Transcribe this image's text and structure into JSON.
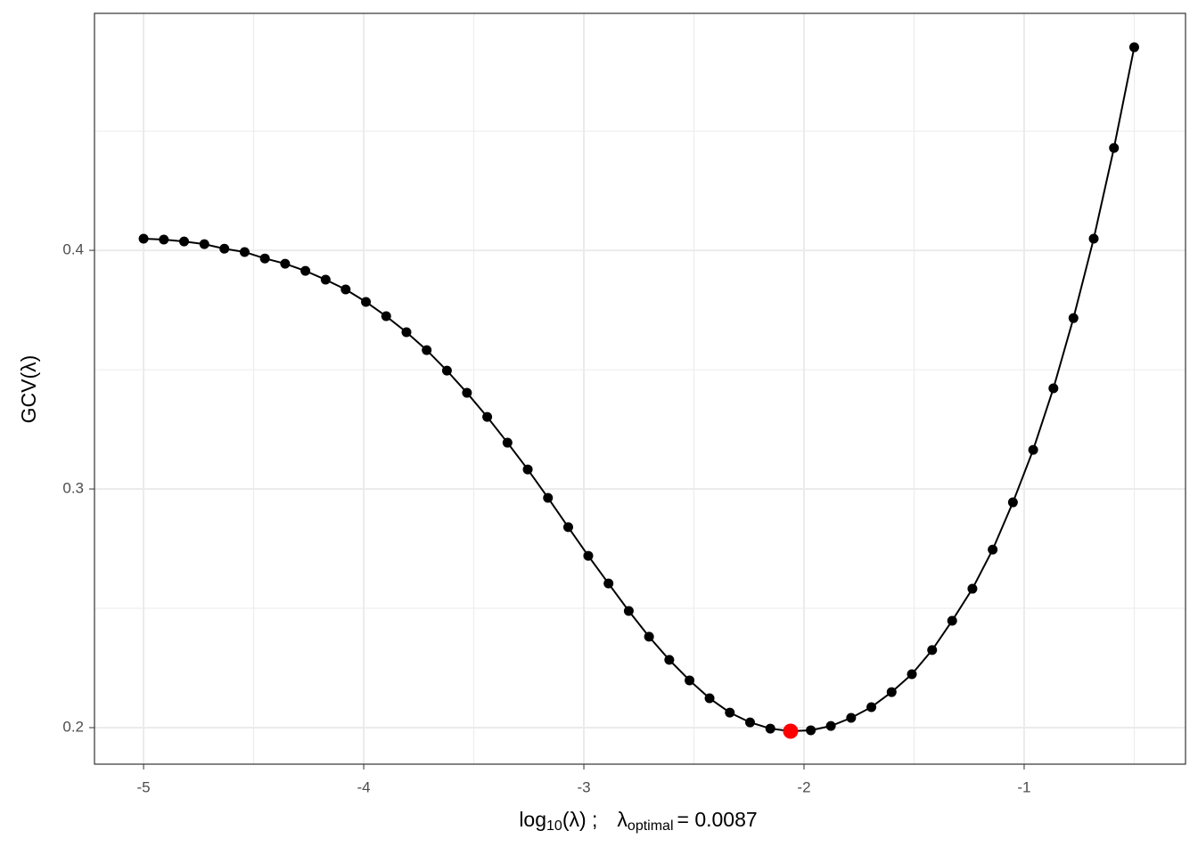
{
  "chart_data": {
    "type": "line",
    "xlabel": [
      "log",
      "10",
      "(λ) ;",
      "λ",
      "optimal",
      "= 0.0087"
    ],
    "ylabel": "GCV(λ)",
    "x": [
      -5,
      -4.908,
      -4.816,
      -4.724,
      -4.633,
      -4.541,
      -4.449,
      -4.357,
      -4.265,
      -4.173,
      -4.082,
      -3.99,
      -3.898,
      -3.806,
      -3.714,
      -3.622,
      -3.531,
      -3.439,
      -3.347,
      -3.255,
      -3.163,
      -3.071,
      -2.98,
      -2.888,
      -2.796,
      -2.704,
      -2.612,
      -2.52,
      -2.429,
      -2.337,
      -2.245,
      -2.153,
      -2.061,
      -1.969,
      -1.878,
      -1.786,
      -1.694,
      -1.602,
      -1.51,
      -1.418,
      -1.327,
      -1.235,
      -1.143,
      -1.051,
      -0.959,
      -0.867,
      -0.776,
      -0.684,
      -0.592,
      -0.5
    ],
    "series": [
      {
        "name": "GCV",
        "color": "#000000",
        "values": [
          0.4049,
          0.4045,
          0.4037,
          0.4026,
          0.4007,
          0.3993,
          0.3966,
          0.3944,
          0.3914,
          0.3877,
          0.3836,
          0.3784,
          0.3724,
          0.3657,
          0.3582,
          0.3496,
          0.3403,
          0.3302,
          0.3194,
          0.3082,
          0.2963,
          0.284,
          0.272,
          0.2604,
          0.2489,
          0.2381,
          0.2284,
          0.2198,
          0.2123,
          0.2063,
          0.2022,
          0.1996,
          0.1985,
          0.1989,
          0.2007,
          0.2041,
          0.2086,
          0.2149,
          0.2224,
          0.2325,
          0.2448,
          0.2582,
          0.2746,
          0.2944,
          0.3164,
          0.3422,
          0.3716,
          0.4049,
          0.4429,
          0.4851
        ]
      }
    ],
    "highlight_index": 32,
    "highlight_color": "#ff0000",
    "xlim": [
      -5.223,
      -0.267
    ],
    "ylim": [
      0.1847,
      0.4993
    ],
    "xticks": [
      -5,
      -4,
      -3,
      -2,
      -1
    ],
    "yticks": [
      0.2,
      0.3,
      0.4
    ],
    "minor_xticks": [
      -4.5,
      -3.5,
      -2.5,
      -1.5,
      -0.5
    ],
    "minor_yticks": [
      0.25,
      0.35,
      0.45
    ],
    "grid": true
  }
}
